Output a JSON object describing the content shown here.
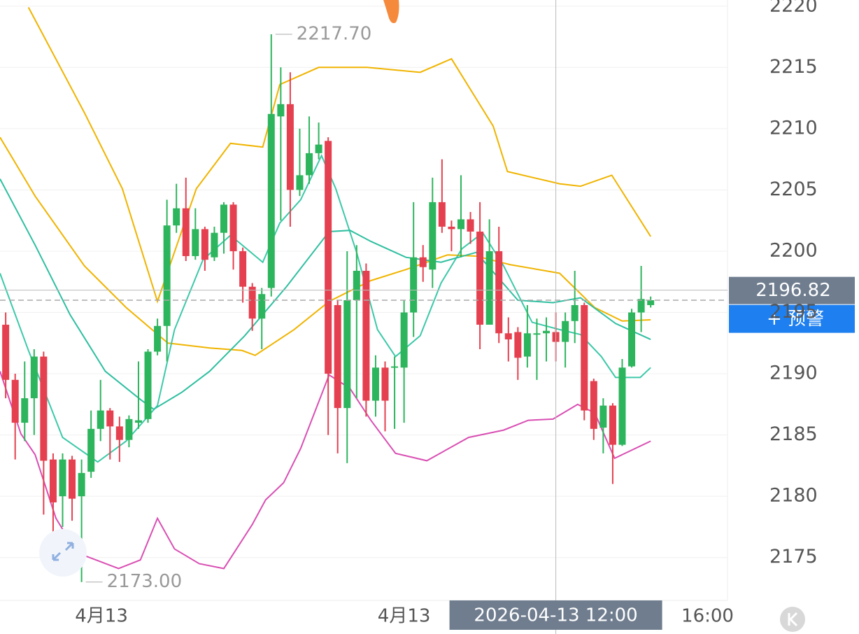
{
  "chart_data": {
    "type": "candlestick",
    "open": [
      2194,
      2189.5,
      2186,
      2188,
      2191.4,
      2183,
      2180,
      2183,
      2180,
      2182,
      2185.5,
      2187,
      2185.7,
      2184.6,
      2186,
      2186.3,
      2191.8,
      2193.9,
      2202.1,
      2203.5,
      2199.6,
      2201.8,
      2199.5,
      2201.5,
      2203.8,
      2200,
      2197.1,
      2194.5,
      2197,
      2211,
      2212,
      2205,
      2206.2,
      2208,
      2209,
      2195.6,
      2187.2,
      2196,
      2198.4,
      2187.8,
      2190.5,
      2190.5,
      2190.5,
      2195,
      2199.5,
      2198.5,
      2204,
      2202,
      2201.8,
      2202.6,
      2201.6,
      2194,
      2200,
      2193.3,
      2193.4,
      2191.4,
      2193.2,
      2193.3,
      2193.4,
      2192.6,
      2194.3,
      2195.6,
      2189.4,
      2185.6,
      2187.4,
      2184.2,
      2190.6,
      2195,
      2195.6
    ],
    "high": [
      2195,
      2190,
      2191,
      2192,
      2191.8,
      2183.5,
      2183.5,
      2183.3,
      2183,
      2187,
      2189.5,
      2187.2,
      2186.5,
      2186.6,
      2191,
      2192,
      2194.5,
      2204.2,
      2205.5,
      2206,
      2203.5,
      2202,
      2202,
      2204,
      2204,
      2200.3,
      2197.4,
      2197,
      2217.7,
      2215,
      2214.6,
      2210,
      2211,
      2210.5,
      2209.3,
      2196,
      2200,
      2200.5,
      2199,
      2191.5,
      2191,
      2191.4,
      2196,
      2204,
      2200.5,
      2206,
      2207.5,
      2202.5,
      2206.2,
      2203.2,
      2204,
      2202.6,
      2202,
      2194.6,
      2193.8,
      2195.6,
      2194.5,
      2194.6,
      2195,
      2195,
      2198.4,
      2195.8,
      2189.6,
      2188,
      2187.6,
      2191.2,
      2195.3,
      2198.8,
      2196.3
    ],
    "low": [
      2188,
      2183,
      2184.5,
      2185,
      2178.5,
      2177,
      2177.5,
      2178,
      2173,
      2181.5,
      2184.5,
      2183,
      2182.8,
      2184,
      2185.5,
      2186,
      2191.5,
      2191,
      2201.5,
      2199.2,
      2199.3,
      2198.4,
      2199.2,
      2199.8,
      2198.5,
      2195.8,
      2193.5,
      2192,
      2196.3,
      2202.5,
      2202,
      2204.5,
      2205.5,
      2207.5,
      2185,
      2183.5,
      2182.7,
      2188,
      2186.5,
      2186.5,
      2185.3,
      2185.5,
      2186,
      2193,
      2197.5,
      2197,
      2201.5,
      2200,
      2199.5,
      2200.6,
      2192,
      2194,
      2192.5,
      2191,
      2189.5,
      2190.5,
      2189.5,
      2191,
      2191,
      2190.5,
      2192.5,
      2186.2,
      2184.6,
      2183.5,
      2181,
      2184.1,
      2190.5,
      2193.4,
      2195.4
    ],
    "close": [
      2189.5,
      2186,
      2188,
      2191.4,
      2182.9,
      2179.5,
      2183,
      2179.8,
      2181.9,
      2185.5,
      2187,
      2185.7,
      2184.6,
      2186.3,
      2186.2,
      2191.8,
      2193.9,
      2202.1,
      2203.5,
      2199.6,
      2201.8,
      2199.3,
      2201.5,
      2203.8,
      2200,
      2197.1,
      2194.5,
      2196.5,
      2211.2,
      2212,
      2205,
      2206.2,
      2208,
      2208.7,
      2190,
      2187.2,
      2196,
      2198.4,
      2187.8,
      2190.5,
      2187.8,
      2190.6,
      2195,
      2199.5,
      2198.7,
      2204,
      2202,
      2201.8,
      2202.6,
      2201.6,
      2194,
      2200,
      2193.3,
      2192.8,
      2191.3,
      2193.3,
      2193.3,
      2193.5,
      2192.6,
      2194.3,
      2195.6,
      2187,
      2185.5,
      2187.4,
      2184.2,
      2190.5,
      2195,
      2196.1,
      2196
    ],
    "up_color": "#2db55d",
    "down_color": "#e5404f",
    "series": [
      {
        "color": "#f0b400",
        "x": [
          2.4,
          8.3,
          12.3,
          16.0,
          20.1,
          23.7,
          27.1,
          28.9,
          33.0,
          38.1,
          43.7,
          47.0,
          51.4,
          52.9,
          58.4,
          60.6,
          63.9,
          68.0
        ],
        "values": [
          2219.9,
          2211.3,
          2205.1,
          2195.9,
          2205.1,
          2208.8,
          2208.5,
          2213.6,
          2215.0,
          2215.0,
          2214.6,
          2215.7,
          2210.2,
          2206.5,
          2205.5,
          2205.3,
          2206.2,
          2201.2
        ]
      },
      {
        "color": "#f0b400",
        "x": [
          -0.6,
          3.1,
          8.3,
          12.7,
          17.1,
          21.5,
          24.9,
          26.3,
          30.4,
          34.1,
          38.5,
          42.2,
          46.6,
          49.6,
          53.2,
          58.4,
          62.1,
          65.0,
          68.0
        ],
        "values": [
          2209.3,
          2204.5,
          2198.8,
          2195.4,
          2192.5,
          2192.1,
          2191.9,
          2191.5,
          2193.6,
          2195.9,
          2197.6,
          2198.5,
          2199.7,
          2199.6,
          2198.9,
          2198.2,
          2195.4,
          2194.3,
          2194.4
        ]
      },
      {
        "color": "#d94fb3",
        "x": [
          -0.6,
          1.6,
          3.1,
          5.3,
          7.5,
          11.9,
          14.2,
          16.0,
          17.8,
          20.4,
          23.0,
          26.0,
          27.4,
          29.3,
          31.1,
          34.1,
          36.3,
          38.5,
          41.1,
          44.4,
          48.8,
          52.5,
          55.1,
          57.7,
          60.3,
          62.1,
          64.2,
          68.0
        ],
        "values": [
          2190.2,
          2185.1,
          2183.4,
          2178.2,
          2175.4,
          2174.1,
          2174.8,
          2178.2,
          2175.7,
          2174.5,
          2174.1,
          2177.7,
          2179.7,
          2181.1,
          2183.9,
          2189.9,
          2188.8,
          2186.2,
          2183.5,
          2182.9,
          2184.8,
          2185.4,
          2186.2,
          2186.3,
          2187.5,
          2186.8,
          2183.1,
          2184.5
        ]
      },
      {
        "color": "#3cc9a8",
        "x": [
          -0.6,
          2.4,
          6.0,
          9.7,
          12.7,
          16.0,
          17.8,
          20.8,
          23.7,
          27.1,
          28.9,
          31.1,
          33.3,
          34.8,
          37.0,
          39.2,
          41.1,
          43.7,
          45.9,
          48.1,
          50.3,
          52.5,
          55.5,
          58.4,
          60.6,
          62.8,
          64.3,
          66.9,
          68.0
        ],
        "values": [
          2198.2,
          2191.9,
          2184.8,
          2182.8,
          2184.5,
          2187.4,
          2193.6,
          2199.3,
          2201.3,
          2199.1,
          2202.3,
          2204.2,
          2207.8,
          2205.1,
          2199.9,
          2193.6,
          2191.4,
          2193.1,
          2197.4,
          2200.2,
          2201.5,
          2198.8,
          2194.2,
          2193.6,
          2193.2,
          2191.4,
          2189.7,
          2189.7,
          2190.5
        ]
      },
      {
        "color": "#2fbfa0",
        "x": [
          -0.6,
          3.1,
          6.8,
          10.5,
          14.2,
          15.6,
          18.6,
          21.5,
          25.2,
          29.6,
          34.1,
          36.3,
          38.5,
          42.2,
          45.9,
          49.6,
          54.0,
          57.7,
          60.6,
          64.3,
          68.0
        ],
        "values": [
          2205.9,
          2200.5,
          2194.8,
          2190.2,
          2187.9,
          2187.1,
          2188.5,
          2190.2,
          2193.1,
          2197.1,
          2201.6,
          2201.7,
          2200.8,
          2199.5,
          2199.1,
          2199.9,
          2196.0,
          2195.8,
          2196.2,
          2194.1,
          2192.8
        ]
      }
    ],
    "xlim": [
      -0.6,
      76.1
    ],
    "xticks": [
      {
        "value": 10.1,
        "label": "4月13"
      },
      {
        "value": 42.0,
        "label": "4月13"
      },
      {
        "value": 74.0,
        "label": "16:00"
      }
    ],
    "ylim": [
      2171.5,
      2220.5
    ],
    "yticks": [
      2175,
      2180,
      2185,
      2190,
      2195,
      2200,
      2205,
      2210,
      2215,
      2220
    ],
    "grid": true,
    "max_label": "2217.70",
    "min_label": "2173.00",
    "crosshair": {
      "x": 58.0,
      "x_label": "2026-04-13 12:00",
      "y": 2196.82
    },
    "alert_button": "+ 预警"
  }
}
